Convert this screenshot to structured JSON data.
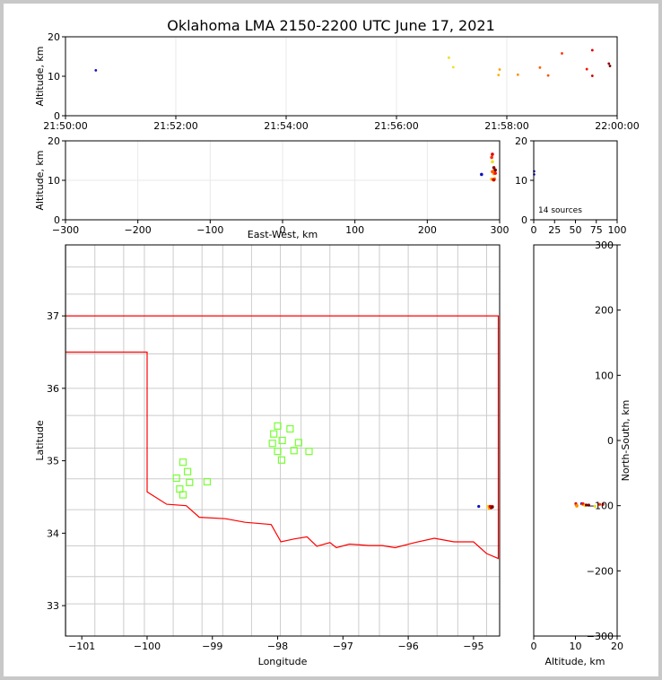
{
  "title": "Oklahoma LMA 2150-2200 UTC June 17, 2021",
  "colors": {
    "boundary": "#cccccc",
    "state_line": "#ff0000",
    "station": "#77ff33",
    "axis": "#000000",
    "grid": "#e8e8e8"
  },
  "chart_data": [
    {
      "id": "time-height",
      "type": "scatter",
      "ylabel": "Altitude, km",
      "xlim_minutes": [
        0,
        10
      ],
      "ylim": [
        0,
        20
      ],
      "x_tick_labels": [
        "21:50:00",
        "21:52:00",
        "21:54:00",
        "21:56:00",
        "21:58:00",
        "22:00:00"
      ],
      "y_ticks": [
        0,
        10,
        20
      ],
      "grid": true,
      "points": [
        {
          "t": 0.55,
          "alt": 11.5,
          "color": "#1010c0"
        },
        {
          "t": 6.95,
          "alt": 14.7,
          "color": "#e8e020"
        },
        {
          "t": 7.03,
          "alt": 12.3,
          "color": "#f0e020"
        },
        {
          "t": 7.85,
          "alt": 10.3,
          "color": "#ffb000"
        },
        {
          "t": 7.87,
          "alt": 11.7,
          "color": "#ffa000"
        },
        {
          "t": 8.2,
          "alt": 10.4,
          "color": "#ff9000"
        },
        {
          "t": 8.6,
          "alt": 12.2,
          "color": "#ff6000"
        },
        {
          "t": 8.75,
          "alt": 10.2,
          "color": "#ff5000"
        },
        {
          "t": 9.0,
          "alt": 15.8,
          "color": "#ff3000"
        },
        {
          "t": 9.45,
          "alt": 11.8,
          "color": "#ff1000"
        },
        {
          "t": 9.55,
          "alt": 16.6,
          "color": "#e00000"
        },
        {
          "t": 9.55,
          "alt": 10.1,
          "color": "#d00000"
        },
        {
          "t": 9.85,
          "alt": 13.2,
          "color": "#900000"
        },
        {
          "t": 9.87,
          "alt": 12.6,
          "color": "#700000"
        }
      ]
    },
    {
      "id": "east-west-altitude",
      "type": "scatter",
      "xlabel": "East-West, km",
      "ylabel": "Altitude, km",
      "xlim": [
        -300,
        300
      ],
      "ylim": [
        0,
        20
      ],
      "x_ticks": [
        -300,
        -200,
        -100,
        0,
        100,
        200,
        300
      ],
      "y_ticks": [
        0,
        10,
        20
      ],
      "grid": true,
      "points": [
        {
          "x": 275,
          "alt": 11.5,
          "color": "#1010c0"
        },
        {
          "x": 290,
          "alt": 14.7,
          "color": "#e8e020"
        },
        {
          "x": 291,
          "alt": 12.3,
          "color": "#f0e020"
        },
        {
          "x": 289,
          "alt": 10.3,
          "color": "#ffb000"
        },
        {
          "x": 292,
          "alt": 11.7,
          "color": "#ffa000"
        },
        {
          "x": 293,
          "alt": 10.4,
          "color": "#ff9000"
        },
        {
          "x": 290,
          "alt": 12.2,
          "color": "#ff6000"
        },
        {
          "x": 291,
          "alt": 10.2,
          "color": "#ff5000"
        },
        {
          "x": 289,
          "alt": 15.8,
          "color": "#ff3000"
        },
        {
          "x": 294,
          "alt": 11.8,
          "color": "#ff1000"
        },
        {
          "x": 290,
          "alt": 16.6,
          "color": "#e00000"
        },
        {
          "x": 292,
          "alt": 10.1,
          "color": "#d00000"
        },
        {
          "x": 292,
          "alt": 13.2,
          "color": "#900000"
        },
        {
          "x": 294,
          "alt": 12.6,
          "color": "#700000"
        }
      ]
    },
    {
      "id": "histogram",
      "type": "bar",
      "xlim": [
        0,
        100
      ],
      "ylim": [
        0,
        20
      ],
      "x_ticks": [
        0,
        50,
        100
      ],
      "x_tick_labels": [
        "0",
        "25",
        "50",
        "75",
        "100"
      ],
      "y_ticks": [
        0,
        10,
        20
      ],
      "source_count_label": "14 sources",
      "points": [
        {
          "x": 0.5,
          "alt": 11.5,
          "color": "#1010c0"
        },
        {
          "x": 0.5,
          "alt": 12.3,
          "color": "#1010c0"
        }
      ]
    },
    {
      "id": "plan-view",
      "type": "scatter",
      "xlabel": "Longitude",
      "ylabel": "Latitude",
      "xlim": [
        -101.25,
        -94.6
      ],
      "ylim": [
        32.58,
        37.98
      ],
      "x_ticks": [
        -101,
        -100,
        -99,
        -98,
        -97,
        -96,
        -95
      ],
      "y_ticks": [
        33,
        34,
        35,
        36,
        37
      ],
      "stations": [
        {
          "lon": -99.45,
          "lat": 34.98
        },
        {
          "lon": -99.38,
          "lat": 34.85
        },
        {
          "lon": -99.55,
          "lat": 34.76
        },
        {
          "lon": -99.35,
          "lat": 34.7
        },
        {
          "lon": -99.5,
          "lat": 34.61
        },
        {
          "lon": -99.45,
          "lat": 34.53
        },
        {
          "lon": -99.08,
          "lat": 34.71
        },
        {
          "lon": -98.0,
          "lat": 35.48
        },
        {
          "lon": -98.06,
          "lat": 35.37
        },
        {
          "lon": -97.81,
          "lat": 35.44
        },
        {
          "lon": -97.93,
          "lat": 35.28
        },
        {
          "lon": -98.08,
          "lat": 35.24
        },
        {
          "lon": -97.68,
          "lat": 35.25
        },
        {
          "lon": -98.0,
          "lat": 35.13
        },
        {
          "lon": -97.75,
          "lat": 35.14
        },
        {
          "lon": -97.52,
          "lat": 35.13
        },
        {
          "lon": -97.94,
          "lat": 35.01
        }
      ],
      "points": [
        {
          "lon": -94.92,
          "lat": 34.37,
          "color": "#1010c0"
        },
        {
          "lon": -94.78,
          "lat": 34.37,
          "color": "#e8e020"
        },
        {
          "lon": -94.77,
          "lat": 34.36,
          "color": "#f0e020"
        },
        {
          "lon": -94.76,
          "lat": 34.34,
          "color": "#ffb000"
        },
        {
          "lon": -94.75,
          "lat": 34.35,
          "color": "#ffa000"
        },
        {
          "lon": -94.74,
          "lat": 34.36,
          "color": "#ff9000"
        },
        {
          "lon": -94.73,
          "lat": 34.36,
          "color": "#ff6000"
        },
        {
          "lon": -94.72,
          "lat": 34.37,
          "color": "#ff5000"
        },
        {
          "lon": -94.71,
          "lat": 34.37,
          "color": "#ff3000"
        },
        {
          "lon": -94.75,
          "lat": 34.37,
          "color": "#ff1000"
        },
        {
          "lon": -94.74,
          "lat": 34.37,
          "color": "#e00000"
        },
        {
          "lon": -94.73,
          "lat": 34.35,
          "color": "#d00000"
        },
        {
          "lon": -94.72,
          "lat": 34.36,
          "color": "#900000"
        },
        {
          "lon": -94.71,
          "lat": 34.36,
          "color": "#700000"
        }
      ]
    },
    {
      "id": "altitude-north-south",
      "type": "scatter",
      "xlabel": "Altitude, km",
      "ylabel": "North-South, km",
      "xlim": [
        0,
        20
      ],
      "ylim": [
        -300,
        300
      ],
      "x_ticks": [
        0,
        10,
        20
      ],
      "y_ticks": [
        -300,
        -200,
        -100,
        0,
        100,
        200,
        300
      ],
      "points": [
        {
          "alt": 10.1,
          "ns": -97,
          "color": "#d00000"
        },
        {
          "alt": 10.2,
          "ns": -99,
          "color": "#ff5000"
        },
        {
          "alt": 10.3,
          "ns": -101,
          "color": "#ffb000"
        },
        {
          "alt": 10.4,
          "ns": -100,
          "color": "#ff9000"
        },
        {
          "alt": 11.5,
          "ns": -97,
          "color": "#1010c0"
        },
        {
          "alt": 11.7,
          "ns": -98,
          "color": "#ffa000"
        },
        {
          "alt": 11.8,
          "ns": -97,
          "color": "#ff1000"
        },
        {
          "alt": 12.2,
          "ns": -99,
          "color": "#ff6000"
        },
        {
          "alt": 12.3,
          "ns": -100,
          "color": "#f0e020"
        },
        {
          "alt": 12.6,
          "ns": -99,
          "color": "#700000"
        },
        {
          "alt": 13.2,
          "ns": -99,
          "color": "#900000"
        },
        {
          "alt": 14.7,
          "ns": -101,
          "color": "#e8e020"
        },
        {
          "alt": 15.8,
          "ns": -98,
          "color": "#ff3000"
        },
        {
          "alt": 16.6,
          "ns": -98,
          "color": "#e00000"
        }
      ]
    }
  ]
}
